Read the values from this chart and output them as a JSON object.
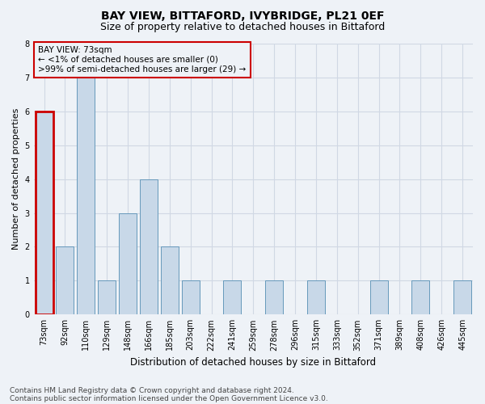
{
  "title": "BAY VIEW, BITTAFORD, IVYBRIDGE, PL21 0EF",
  "subtitle": "Size of property relative to detached houses in Bittaford",
  "xlabel": "Distribution of detached houses by size in Bittaford",
  "ylabel": "Number of detached properties",
  "categories": [
    "73sqm",
    "92sqm",
    "110sqm",
    "129sqm",
    "148sqm",
    "166sqm",
    "185sqm",
    "203sqm",
    "222sqm",
    "241sqm",
    "259sqm",
    "278sqm",
    "296sqm",
    "315sqm",
    "333sqm",
    "352sqm",
    "371sqm",
    "389sqm",
    "408sqm",
    "426sqm",
    "445sqm"
  ],
  "values": [
    6,
    2,
    7,
    1,
    3,
    4,
    2,
    1,
    0,
    1,
    0,
    1,
    0,
    1,
    0,
    0,
    1,
    0,
    1,
    0,
    1
  ],
  "bar_color": "#c8d8e8",
  "bar_edge_color": "#6699bb",
  "highlight_index": 0,
  "highlight_bar_edge_color": "#cc0000",
  "annotation_title": "BAY VIEW: 73sqm",
  "annotation_line1": "← <1% of detached houses are smaller (0)",
  "annotation_line2": ">99% of semi-detached houses are larger (29) →",
  "annotation_box_color": "#cc0000",
  "ylim": [
    0,
    8
  ],
  "yticks": [
    0,
    1,
    2,
    3,
    4,
    5,
    6,
    7,
    8
  ],
  "footnote1": "Contains HM Land Registry data © Crown copyright and database right 2024.",
  "footnote2": "Contains public sector information licensed under the Open Government Licence v3.0.",
  "background_color": "#eef2f7",
  "grid_color": "#d0d8e4",
  "title_fontsize": 10,
  "subtitle_fontsize": 9,
  "xlabel_fontsize": 8.5,
  "ylabel_fontsize": 8,
  "tick_fontsize": 7,
  "annotation_fontsize": 7.5,
  "footnote_fontsize": 6.5
}
